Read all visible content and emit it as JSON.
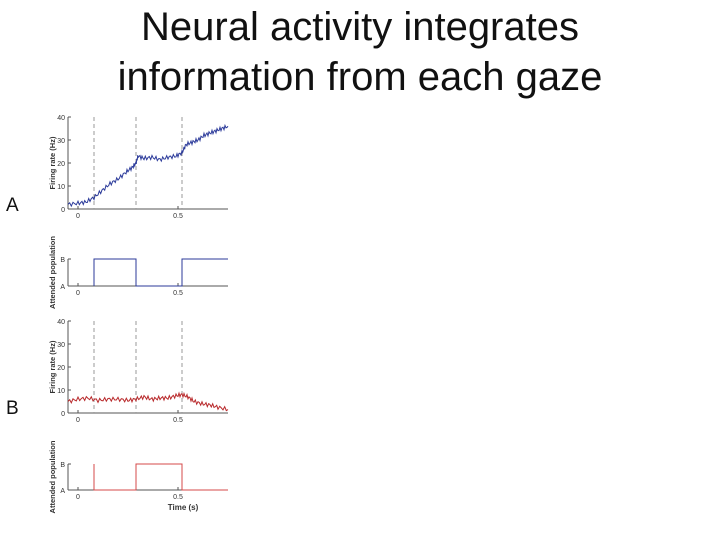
{
  "slide": {
    "title_line1": "Neural activity integrates",
    "title_line2": "information from each gaze",
    "label_a": "A",
    "label_b": "B"
  },
  "chart_data": [
    {
      "id": "rate_a",
      "type": "line",
      "ylabel": "Firing rate (Hz)",
      "xlim": [
        -0.05,
        0.75
      ],
      "ylim": [
        0,
        40
      ],
      "xticks": [
        0,
        0.5
      ],
      "xtick_labels": [
        "0",
        "0.5"
      ],
      "yticks": [
        0,
        10,
        20,
        30,
        40
      ],
      "ytick_labels": [
        "0",
        "10",
        "20",
        "30",
        "40"
      ],
      "vlines": [
        0.08,
        0.29,
        0.52
      ],
      "color": "#2b3a9a",
      "series": [
        {
          "x": [
            -0.05,
            0.0,
            0.04,
            0.08,
            0.12,
            0.16,
            0.2,
            0.24,
            0.27,
            0.29,
            0.3,
            0.33,
            0.37,
            0.41,
            0.45,
            0.49,
            0.52,
            0.54,
            0.57,
            0.6,
            0.63,
            0.66,
            0.69,
            0.72,
            0.75
          ],
          "y": [
            2,
            2.5,
            3,
            5,
            8,
            11,
            13,
            16,
            18,
            20,
            23,
            22,
            22.5,
            21.5,
            22.5,
            23,
            24.5,
            28,
            29,
            30,
            32,
            33,
            34,
            35,
            36
          ]
        }
      ]
    },
    {
      "id": "attn_a",
      "type": "line",
      "ylabel": "Attended population",
      "xlim": [
        -0.05,
        0.75
      ],
      "ylim": [
        0,
        1
      ],
      "xticks": [
        0,
        0.5
      ],
      "xtick_labels": [
        "0",
        "0.5"
      ],
      "ytick_labels": [
        "A",
        "B"
      ],
      "color": "#2b3a9a",
      "series": [
        {
          "x": [
            0.08,
            0.08,
            0.29,
            0.29,
            0.52,
            0.52,
            0.75
          ],
          "y": [
            0,
            1,
            1,
            0,
            0,
            1,
            1
          ]
        }
      ]
    },
    {
      "id": "rate_b",
      "type": "line",
      "ylabel": "Firing rate (Hz)",
      "xlim": [
        -0.05,
        0.75
      ],
      "ylim": [
        0,
        40
      ],
      "xticks": [
        0,
        0.5
      ],
      "xtick_labels": [
        "0",
        "0.5"
      ],
      "yticks": [
        0,
        10,
        20,
        30,
        40
      ],
      "ytick_labels": [
        "0",
        "10",
        "20",
        "30",
        "40"
      ],
      "vlines": [
        0.08,
        0.29,
        0.52
      ],
      "color": "#b8282a",
      "series": [
        {
          "x": [
            -0.05,
            0.0,
            0.05,
            0.1,
            0.15,
            0.2,
            0.25,
            0.29,
            0.33,
            0.37,
            0.41,
            0.45,
            0.49,
            0.52,
            0.55,
            0.58,
            0.62,
            0.66,
            0.7,
            0.75
          ],
          "y": [
            5,
            6,
            6.5,
            5.5,
            6,
            6,
            5.5,
            6,
            7,
            6,
            6.5,
            6.5,
            7.5,
            8,
            7,
            5,
            4,
            3.5,
            2.5,
            1.5
          ]
        }
      ]
    },
    {
      "id": "attn_b",
      "type": "line",
      "ylabel": "Attended population",
      "xlabel": "Time (s)",
      "xlim": [
        -0.05,
        0.75
      ],
      "ylim": [
        0,
        1
      ],
      "xticks": [
        0,
        0.5
      ],
      "xtick_labels": [
        "0",
        "0.5"
      ],
      "ytick_labels": [
        "A",
        "B"
      ],
      "color": "#d4484a",
      "series": [
        {
          "x": [
            0.08,
            0.08,
            0.29,
            0.29,
            0.52,
            0.52,
            0.75
          ],
          "y": [
            1,
            0,
            0,
            1,
            1,
            0,
            0
          ]
        }
      ]
    }
  ]
}
